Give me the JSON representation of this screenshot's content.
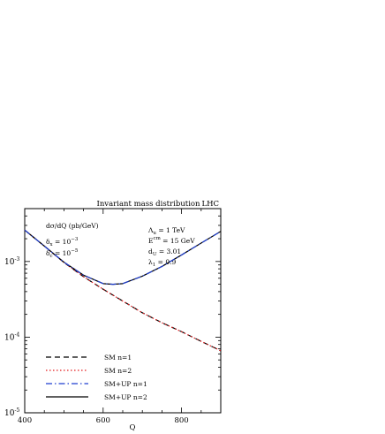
{
  "chart_data": {
    "type": "line",
    "title": "Invariant mass distribution",
    "corner_label": "LHC",
    "xlabel": "Q",
    "ylabel": "dσ/dQ (pb/GeV)",
    "xlim": [
      400,
      900
    ],
    "ylim": [
      1e-05,
      0.005
    ],
    "y_scale": "log",
    "x_ticks": [
      {
        "value": 400,
        "label": "400"
      },
      {
        "value": 600,
        "label": "600"
      },
      {
        "value": 800,
        "label": "800"
      }
    ],
    "y_ticks": [
      {
        "value": 0.001,
        "base": "10",
        "exp": "-3"
      },
      {
        "value": 0.0001,
        "base": "10",
        "exp": "-4"
      },
      {
        "value": 1e-05,
        "base": "10",
        "exp": "-5"
      }
    ],
    "params_left": [
      {
        "sym": "δ",
        "sub": "x",
        "rest": " = 10",
        "sup": "−3"
      },
      {
        "sym": "δ",
        "sub": "c",
        "rest": " = 10",
        "sup": "−5"
      }
    ],
    "params_right": [
      {
        "sym": "Λ",
        "sub": "u",
        "sup": "",
        "rest": " = 1 TeV"
      },
      {
        "sym": "E",
        "sub": "",
        "sup": "cm",
        "rest": " = 15 GeV"
      },
      {
        "sym": "d",
        "sub": "U",
        "sup": "",
        "rest": " = 3.01"
      },
      {
        "sym": "λ",
        "sub": "1",
        "sup": "",
        "rest": " = 0.9"
      }
    ],
    "legend_position": "bottom-left",
    "grid": false,
    "series": [
      {
        "name": "SM n=1",
        "color": "#000000",
        "dash": "6,4",
        "x": [
          400,
          450,
          500,
          550,
          600,
          650,
          700,
          750,
          800,
          850,
          900
        ],
        "y": [
          0.0026,
          0.0016,
          0.00097,
          0.00063,
          0.00043,
          0.0003,
          0.00021,
          0.000155,
          0.000118,
          8.8e-05,
          6.6e-05
        ]
      },
      {
        "name": "SM n=2",
        "color": "#e41a1c",
        "dash": "1.5,2.5",
        "x": [
          400,
          450,
          500,
          550,
          600,
          650,
          700,
          750,
          800,
          850,
          900
        ],
        "y": [
          0.0026,
          0.0016,
          0.00097,
          0.00063,
          0.00043,
          0.0003,
          0.00021,
          0.000155,
          0.000118,
          8.8e-05,
          6.6e-05
        ]
      },
      {
        "name": "SM+UP n=1",
        "color": "#1f3fd0",
        "dash": "7,3,1.5,3",
        "x": [
          400,
          450,
          500,
          550,
          600,
          625,
          650,
          700,
          750,
          800,
          850,
          900
        ],
        "y": [
          0.0026,
          0.0016,
          0.00098,
          0.00066,
          0.00051,
          0.0005,
          0.00051,
          0.00064,
          0.00086,
          0.00122,
          0.00175,
          0.0025
        ]
      },
      {
        "name": "SM+UP n=2",
        "color": "#000000",
        "dash": "",
        "x": [
          400,
          450,
          500,
          550,
          600,
          625,
          650,
          700,
          750,
          800,
          850,
          900
        ],
        "y": [
          0.0026,
          0.0016,
          0.00098,
          0.00066,
          0.00051,
          0.0005,
          0.00051,
          0.00064,
          0.00086,
          0.00122,
          0.00175,
          0.0025
        ]
      }
    ]
  }
}
